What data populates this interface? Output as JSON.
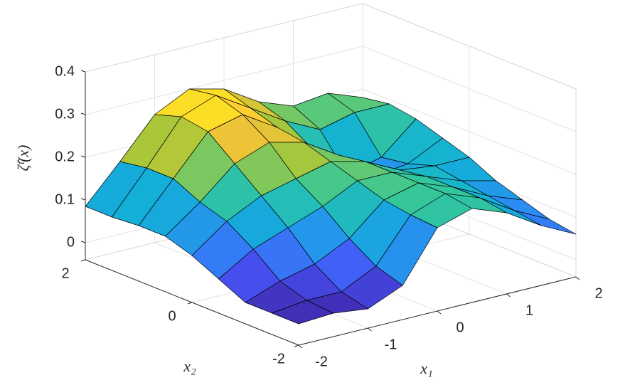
{
  "chart_data": {
    "type": "surface",
    "xlabel": "x₁",
    "ylabel": "x₂",
    "zlabel": "ζ̂ᵗ(x)",
    "x": [
      -2,
      -1.5,
      -1,
      -0.5,
      0,
      0.5,
      1,
      1.5,
      2
    ],
    "y": [
      -2,
      -1.5,
      -1,
      -0.5,
      0,
      0.5,
      1,
      1.5,
      2
    ],
    "z": [
      [
        0.01,
        0.015,
        0.005,
        0.04,
        0.155,
        0.18,
        0.15,
        0.1,
        0.06
      ],
      [
        0.01,
        0.02,
        0.02,
        0.06,
        0.16,
        0.19,
        0.16,
        0.11,
        0.07
      ],
      [
        0.01,
        0.04,
        0.06,
        0.1,
        0.17,
        0.19,
        0.16,
        0.12,
        0.09
      ],
      [
        0.04,
        0.09,
        0.12,
        0.15,
        0.19,
        0.19,
        0.16,
        0.13,
        0.11
      ],
      [
        0.07,
        0.13,
        0.17,
        0.19,
        0.21,
        0.19,
        0.15,
        0.14,
        0.14
      ],
      [
        0.09,
        0.15,
        0.22,
        0.25,
        0.23,
        0.18,
        0.11,
        0.12,
        0.16
      ],
      [
        0.09,
        0.18,
        0.27,
        0.29,
        0.24,
        0.17,
        0.09,
        0.11,
        0.18
      ],
      [
        0.085,
        0.18,
        0.28,
        0.31,
        0.26,
        0.21,
        0.17,
        0.19,
        0.19
      ],
      [
        0.085,
        0.17,
        0.26,
        0.3,
        0.28,
        0.23,
        0.2,
        0.21,
        0.18
      ]
    ],
    "xlim": [
      -2,
      2
    ],
    "ylim": [
      -2,
      2
    ],
    "zlim": [
      -0.04,
      0.4
    ],
    "xticks": [
      -2,
      -1,
      0,
      1,
      2
    ],
    "yticks": [
      -2,
      0,
      2
    ],
    "zticks": [
      0,
      0.1,
      0.2,
      0.3,
      0.4
    ],
    "grid": true,
    "colormap": "parula",
    "edge_color": "#000000"
  }
}
